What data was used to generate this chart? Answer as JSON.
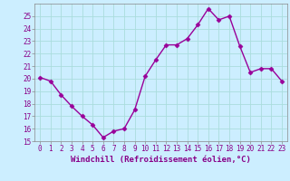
{
  "x": [
    0,
    1,
    2,
    3,
    4,
    5,
    6,
    7,
    8,
    9,
    10,
    11,
    12,
    13,
    14,
    15,
    16,
    17,
    18,
    19,
    20,
    21,
    22,
    23
  ],
  "y": [
    20.1,
    19.8,
    18.7,
    17.8,
    17.0,
    16.3,
    15.3,
    15.8,
    16.0,
    17.5,
    20.2,
    21.5,
    22.7,
    22.7,
    23.2,
    24.3,
    25.6,
    24.7,
    25.0,
    22.6,
    20.5,
    20.8,
    20.8,
    19.8
  ],
  "line_color": "#990099",
  "marker": "D",
  "markersize": 2.5,
  "linewidth": 1.0,
  "bg_color": "#cceeff",
  "grid_color": "#aadddd",
  "xlabel": "Windchill (Refroidissement éolien,°C)",
  "ylim": [
    15,
    26
  ],
  "xlim": [
    -0.5,
    23.5
  ],
  "yticks": [
    15,
    16,
    17,
    18,
    19,
    20,
    21,
    22,
    23,
    24,
    25
  ],
  "xticks": [
    0,
    1,
    2,
    3,
    4,
    5,
    6,
    7,
    8,
    9,
    10,
    11,
    12,
    13,
    14,
    15,
    16,
    17,
    18,
    19,
    20,
    21,
    22,
    23
  ],
  "tick_fontsize": 5.5,
  "label_fontsize": 6.5,
  "tick_color": "#880088",
  "label_color": "#880088",
  "spine_color": "#888888"
}
